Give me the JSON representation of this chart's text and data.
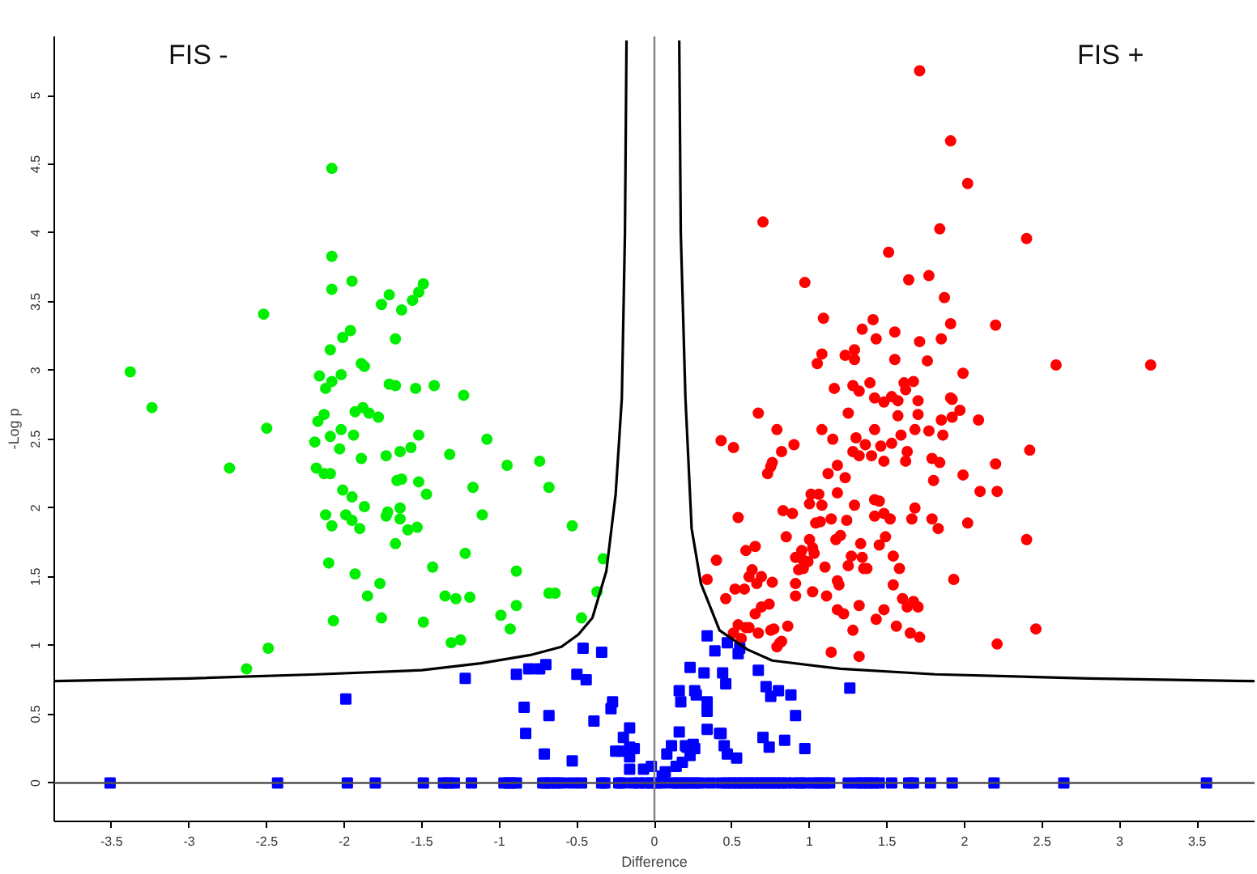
{
  "chart_data": {
    "type": "scatter",
    "xlabel": "Difference",
    "ylabel": "-Log p",
    "annotations": [
      "FIS -",
      "FIS +"
    ],
    "xlim": [
      -3.87,
      3.87
    ],
    "ylim": [
      -0.28,
      5.43
    ],
    "xticks": [
      -3.5,
      -3,
      -2.5,
      -2,
      -1.5,
      -1,
      -0.5,
      0,
      0.5,
      1,
      1.5,
      2,
      2.5,
      3,
      3.5
    ],
    "yticks": [
      0,
      0.5,
      1,
      1.5,
      2,
      2.5,
      3,
      3.5,
      4,
      4.5,
      5
    ],
    "grid": false,
    "ref_lines": [
      {
        "axis": "x",
        "value": 0,
        "color": "#808080"
      },
      {
        "axis": "y",
        "value": 0,
        "color": "#505050"
      }
    ],
    "series": [
      {
        "color": "#00ee00",
        "marker": "circle",
        "x": [
          -2.08,
          -2.08,
          -2.08,
          -2.52,
          -1.95,
          -1.76,
          -1.71,
          -1.63,
          -1.56,
          -1.52,
          -1.49,
          -1.96,
          -2.01,
          -1.67,
          -2.09,
          -3.38,
          -1.89,
          -1.87,
          -2.16,
          -2.02,
          -2.08,
          -2.12,
          -1.71,
          -1.67,
          -1.54,
          -1.42,
          -1.23,
          -3.24,
          -1.93,
          -1.88,
          -1.84,
          -1.78,
          -2.13,
          -2.17,
          -2.5,
          -2.19,
          -2.09,
          -2.02,
          -1.94,
          -2.03,
          -1.89,
          -1.73,
          -1.64,
          -1.57,
          -1.52,
          -1.32,
          -1.08,
          -0.95,
          -0.74,
          -2.74,
          -2.18,
          -2.13,
          -2.09,
          -1.66,
          -1.63,
          -1.52,
          -1.47,
          -1.17,
          -0.68,
          -2.01,
          -1.95,
          -1.87,
          -1.64,
          -2.12,
          -1.99,
          -1.72,
          -1.73,
          -1.64,
          -1.95,
          -1.11,
          -2.08,
          -1.9,
          -1.59,
          -1.53,
          -0.53,
          -1.67,
          -1.22,
          -0.33,
          -2.1,
          -1.43,
          -0.89,
          -1.93,
          -1.77,
          -1.85,
          -1.35,
          -1.28,
          -1.19,
          -0.68,
          -0.64,
          -0.37,
          -0.89,
          -0.99,
          -0.47,
          -2.07,
          -1.76,
          -1.49,
          -0.93,
          -1.25,
          -1.31,
          -2.49,
          -2.63
        ],
        "values": [
          4.47,
          3.83,
          3.59,
          3.41,
          3.65,
          3.48,
          3.55,
          3.44,
          3.51,
          3.57,
          3.63,
          3.29,
          3.24,
          3.23,
          3.15,
          2.99,
          3.05,
          3.03,
          2.96,
          2.97,
          2.92,
          2.87,
          2.9,
          2.89,
          2.87,
          2.89,
          2.82,
          2.73,
          2.7,
          2.73,
          2.69,
          2.66,
          2.68,
          2.63,
          2.58,
          2.48,
          2.52,
          2.57,
          2.53,
          2.43,
          2.36,
          2.38,
          2.41,
          2.44,
          2.53,
          2.39,
          2.5,
          2.31,
          2.34,
          2.29,
          2.29,
          2.25,
          2.25,
          2.2,
          2.21,
          2.19,
          2.1,
          2.15,
          2.15,
          2.13,
          2.08,
          2.01,
          2.0,
          1.95,
          1.95,
          1.97,
          1.94,
          1.92,
          1.91,
          1.95,
          1.87,
          1.85,
          1.84,
          1.86,
          1.87,
          1.74,
          1.67,
          1.63,
          1.6,
          1.57,
          1.54,
          1.52,
          1.45,
          1.36,
          1.36,
          1.34,
          1.35,
          1.38,
          1.38,
          1.39,
          1.29,
          1.22,
          1.2,
          1.18,
          1.2,
          1.17,
          1.12,
          1.04,
          1.02,
          0.98,
          0.83
        ]
      },
      {
        "color": "#ff0000",
        "marker": "circle",
        "x": [
          1.71,
          1.91,
          2.02,
          0.7,
          1.84,
          2.4,
          1.51,
          0.97,
          1.64,
          1.77,
          1.87,
          1.09,
          1.41,
          1.91,
          2.2,
          1.34,
          1.55,
          1.43,
          1.71,
          1.85,
          1.08,
          1.23,
          1.29,
          1.29,
          1.05,
          1.55,
          1.76,
          2.59,
          3.2,
          1.99,
          1.16,
          1.28,
          1.32,
          1.39,
          1.61,
          1.67,
          1.62,
          1.42,
          1.48,
          1.53,
          1.57,
          1.7,
          1.91,
          1.92,
          0.67,
          1.25,
          1.57,
          1.7,
          1.85,
          1.92,
          1.97,
          2.09,
          0.79,
          1.08,
          1.15,
          1.3,
          1.42,
          1.59,
          1.68,
          1.77,
          1.86,
          0.43,
          0.51,
          0.9,
          0.82,
          1.36,
          1.46,
          1.53,
          1.28,
          1.32,
          1.4,
          1.63,
          1.48,
          1.62,
          1.79,
          2.42,
          0.76,
          0.75,
          1.18,
          1.84,
          2.2,
          0.73,
          1.12,
          1.23,
          1.99,
          1.8,
          1.18,
          1.01,
          1.06,
          2.1,
          2.21,
          1.0,
          1.08,
          1.29,
          1.42,
          1.45,
          0.83,
          0.89,
          1.48,
          1.68,
          1.42,
          1.52,
          1.66,
          1.79,
          0.54,
          1.04,
          1.07,
          1.14,
          1.24,
          2.02,
          1.83,
          1.2,
          1.17,
          1.49,
          0.85,
          1.33,
          1.45,
          1.0,
          1.02,
          1.03,
          0.95,
          0.65,
          0.59,
          2.4,
          0.4,
          0.91,
          0.96,
          0.99,
          1.27,
          1.34,
          1.54,
          1.25,
          1.35,
          1.37,
          0.93,
          0.96,
          1.1,
          1.58,
          0.63,
          0.61,
          0.69,
          0.34,
          0.66,
          0.76,
          0.91,
          1.18,
          1.19,
          1.54,
          1.93,
          0.58,
          0.52,
          0.46,
          0.91,
          1.02,
          1.11,
          1.6,
          1.67,
          1.7,
          1.63,
          0.74,
          0.69,
          1.32,
          1.18,
          1.22,
          1.48,
          0.65,
          0.54,
          0.59,
          0.61,
          0.75,
          0.77,
          0.86,
          1.28,
          1.43,
          1.56,
          1.65,
          1.71,
          2.46,
          0.56,
          0.67,
          0.79,
          0.81,
          0.82,
          1.14,
          1.32,
          2.21,
          0.51
        ],
        "values": [
          5.18,
          4.67,
          4.36,
          4.08,
          4.03,
          3.96,
          3.86,
          3.64,
          3.66,
          3.69,
          3.53,
          3.38,
          3.37,
          3.34,
          3.33,
          3.3,
          3.28,
          3.23,
          3.21,
          3.23,
          3.12,
          3.11,
          3.15,
          3.08,
          3.05,
          3.08,
          3.07,
          3.04,
          3.04,
          2.98,
          2.87,
          2.89,
          2.85,
          2.91,
          2.91,
          2.92,
          2.86,
          2.8,
          2.77,
          2.81,
          2.78,
          2.78,
          2.8,
          2.79,
          2.69,
          2.69,
          2.67,
          2.68,
          2.64,
          2.66,
          2.71,
          2.64,
          2.57,
          2.57,
          2.5,
          2.51,
          2.57,
          2.53,
          2.57,
          2.56,
          2.53,
          2.49,
          2.44,
          2.46,
          2.41,
          2.46,
          2.45,
          2.47,
          2.41,
          2.38,
          2.38,
          2.41,
          2.34,
          2.34,
          2.36,
          2.42,
          2.33,
          2.3,
          2.31,
          2.33,
          2.32,
          2.25,
          2.25,
          2.22,
          2.24,
          2.2,
          2.11,
          2.1,
          2.1,
          2.12,
          2.12,
          2.03,
          2.02,
          2.02,
          2.06,
          2.05,
          1.98,
          1.96,
          1.96,
          2.0,
          1.94,
          1.92,
          1.92,
          1.92,
          1.93,
          1.89,
          1.9,
          1.92,
          1.91,
          1.89,
          1.85,
          1.8,
          1.77,
          1.79,
          1.79,
          1.74,
          1.73,
          1.77,
          1.71,
          1.67,
          1.69,
          1.72,
          1.69,
          1.77,
          1.62,
          1.64,
          1.62,
          1.61,
          1.65,
          1.64,
          1.65,
          1.58,
          1.56,
          1.56,
          1.55,
          1.56,
          1.57,
          1.56,
          1.55,
          1.5,
          1.5,
          1.48,
          1.45,
          1.46,
          1.45,
          1.47,
          1.44,
          1.44,
          1.48,
          1.41,
          1.41,
          1.34,
          1.36,
          1.39,
          1.36,
          1.34,
          1.32,
          1.28,
          1.28,
          1.3,
          1.28,
          1.29,
          1.26,
          1.23,
          1.26,
          1.23,
          1.15,
          1.13,
          1.13,
          1.11,
          1.12,
          1.14,
          1.11,
          1.19,
          1.14,
          1.09,
          1.06,
          1.12,
          1.05,
          1.09,
          0.99,
          1.02,
          1.03,
          0.95,
          0.92,
          1.01,
          1.09
        ]
      },
      {
        "color": "#0000ff",
        "marker": "square",
        "x": [
          -1.22,
          -1.99,
          -0.89,
          -0.81,
          -0.74,
          -0.7,
          -0.5,
          -0.44,
          -0.46,
          -0.34,
          -0.84,
          -0.83,
          -0.68,
          -0.71,
          -0.53,
          -0.39,
          -0.27,
          -0.28,
          -0.2,
          -0.16,
          -0.25,
          -0.21,
          -0.16,
          -0.13,
          -0.16,
          -0.16,
          -0.07,
          -0.02,
          0.05,
          0.07,
          0.08,
          0.11,
          0.14,
          0.16,
          0.18,
          0.2,
          0.21,
          0.23,
          0.25,
          0.26,
          0.16,
          0.17,
          0.23,
          0.26,
          0.27,
          0.32,
          0.34,
          0.34,
          0.34,
          0.42,
          0.43,
          0.44,
          0.46,
          0.45,
          0.47,
          0.53,
          0.34,
          0.39,
          0.47,
          0.54,
          0.55,
          0.67,
          0.72,
          0.75,
          0.8,
          0.88,
          0.91,
          0.7,
          0.74,
          0.84,
          0.97,
          1.26,
          -3.51,
          -2.43,
          -1.98,
          -1.8,
          -1.49,
          -1.36,
          -1.33,
          -1.29,
          -1.18,
          -0.97,
          -0.94,
          -0.92,
          -0.89,
          -0.72,
          -0.7,
          -0.67,
          -0.63,
          -0.6,
          -0.53,
          -0.47,
          -0.34,
          -0.32,
          -0.23,
          -0.21,
          -0.14,
          -0.1,
          -0.06,
          -0.02,
          0.01,
          0.05,
          0.12,
          0.15,
          0.19,
          0.22,
          0.26,
          0.29,
          0.36,
          0.43,
          0.47,
          0.5,
          0.54,
          0.57,
          0.61,
          0.64,
          0.68,
          0.71,
          0.75,
          0.78,
          0.82,
          0.85,
          0.9,
          0.94,
          0.97,
          1.03,
          1.06,
          1.1,
          1.13,
          1.25,
          1.31,
          1.34,
          1.38,
          1.41,
          1.45,
          1.53,
          1.64,
          1.67,
          1.78,
          1.92,
          2.19,
          2.64,
          3.56
        ],
        "values": [
          0.76,
          0.61,
          0.79,
          0.83,
          0.83,
          0.86,
          0.79,
          0.75,
          0.98,
          0.95,
          0.55,
          0.36,
          0.49,
          0.21,
          0.16,
          0.45,
          0.59,
          0.54,
          0.33,
          0.4,
          0.23,
          0.23,
          0.26,
          0.25,
          0.19,
          0.1,
          0.1,
          0.12,
          0.05,
          0.08,
          0.21,
          0.27,
          0.12,
          0.37,
          0.15,
          0.27,
          0.26,
          0.2,
          0.28,
          0.25,
          0.67,
          0.59,
          0.84,
          0.67,
          0.64,
          0.8,
          0.59,
          0.52,
          0.39,
          0.36,
          0.36,
          0.8,
          0.72,
          0.27,
          0.21,
          0.18,
          1.07,
          0.96,
          1.02,
          0.94,
          0.98,
          0.82,
          0.7,
          0.63,
          0.67,
          0.64,
          0.49,
          0.33,
          0.26,
          0.31,
          0.25,
          0.69,
          0,
          0,
          0,
          0,
          0,
          0,
          0,
          0,
          0,
          0,
          0,
          0,
          0,
          0,
          0,
          0,
          0,
          0,
          0,
          0,
          0,
          0,
          0,
          0,
          0,
          0,
          0,
          0,
          0,
          0,
          0,
          0,
          0,
          0,
          0,
          0,
          0,
          0,
          0,
          0,
          0,
          0,
          0,
          0,
          0,
          0,
          0,
          0,
          0,
          0,
          0,
          0,
          0,
          0,
          0,
          0,
          0,
          0,
          0,
          0,
          0,
          0,
          0,
          0,
          0,
          0,
          0,
          0,
          0,
          0,
          0
        ]
      },
      {
        "type": "line",
        "color": "#000000",
        "marker": "none",
        "line_style": "solid",
        "x": [
          -3.87,
          -3.0,
          -2.17,
          -1.5,
          -1.12,
          -0.8,
          -0.6,
          -0.49,
          -0.4,
          -0.31,
          -0.25,
          -0.21,
          -0.19,
          -0.18
        ],
        "values": [
          0.74,
          0.76,
          0.79,
          0.82,
          0.87,
          0.93,
          0.99,
          1.08,
          1.2,
          1.54,
          2.1,
          2.8,
          4.0,
          5.4
        ]
      },
      {
        "type": "line",
        "color": "#000000",
        "marker": "none",
        "line_style": "solid",
        "x": [
          0.16,
          0.17,
          0.2,
          0.24,
          0.3,
          0.42,
          0.6,
          0.76,
          1.2,
          1.81,
          2.8,
          3.87
        ],
        "values": [
          5.4,
          4.0,
          2.8,
          1.85,
          1.45,
          1.11,
          0.97,
          0.89,
          0.83,
          0.79,
          0.76,
          0.74
        ]
      }
    ]
  }
}
